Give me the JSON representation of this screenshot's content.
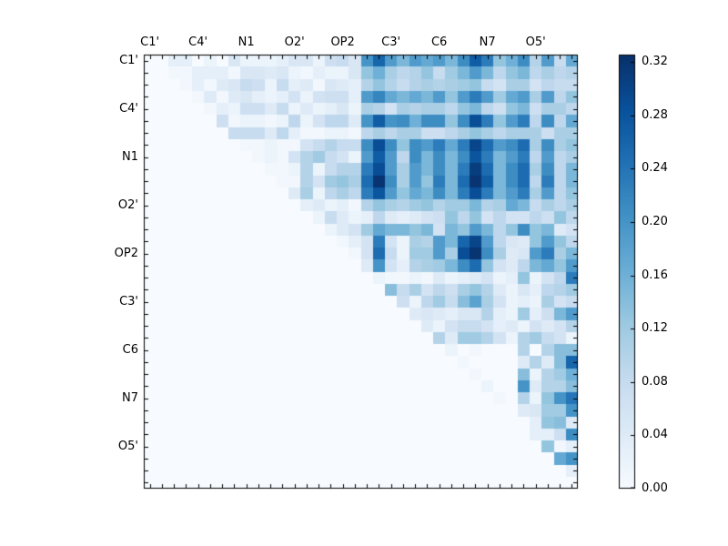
{
  "figure": {
    "background": "#ffffff"
  },
  "chart_data": {
    "type": "heatmap",
    "title": "",
    "grid_size": 36,
    "x_tick_labels": [
      "C1'",
      "C4'",
      "N1",
      "O2'",
      "OP2",
      "C3'",
      "C6",
      "N7",
      "O5'"
    ],
    "y_tick_labels": [
      "C1'",
      "C4'",
      "N1",
      "O2'",
      "OP2",
      "C3'",
      "C6",
      "N7",
      "O5'"
    ],
    "tick_label_stride": 4,
    "tick_label_offset": 0.5,
    "vmin": 0.0,
    "vmax": 0.3255,
    "colormap": "Blues",
    "colormap_stops": [
      "#f7fbff",
      "#deebf7",
      "#c6dbef",
      "#9ecae1",
      "#6baed6",
      "#4292c6",
      "#2171b5",
      "#08519c",
      "#08306b"
    ],
    "axis_color": "#000000",
    "colorbar": {
      "tick_labels": [
        "0.00",
        "0.04",
        "0.08",
        "0.12",
        "0.16",
        "0.20",
        "0.24",
        "0.28",
        "0.32"
      ],
      "tick_values": [
        0.0,
        0.04,
        0.08,
        0.12,
        0.16,
        0.2,
        0.24,
        0.28,
        0.32
      ]
    },
    "matrix": [
      [
        0,
        0,
        0.03,
        0.03,
        0,
        0.02,
        0,
        0.05,
        0.02,
        0.02,
        0.02,
        0.03,
        0.05,
        0.05,
        0.02,
        0.07,
        0.08,
        0.05,
        0.2,
        0.26,
        0.19,
        0.15,
        0.19,
        0.17,
        0.19,
        0.15,
        0.21,
        0.27,
        0.23,
        0.13,
        0.16,
        0.21,
        0.1,
        0.19,
        0.08,
        0.17
      ],
      [
        0,
        0,
        0.01,
        0.01,
        0.03,
        0.03,
        0.03,
        0.01,
        0.05,
        0.05,
        0.04,
        0.05,
        0.02,
        0.01,
        0.03,
        0.02,
        0.02,
        0.05,
        0.13,
        0.16,
        0.11,
        0.09,
        0.1,
        0.13,
        0.08,
        0.12,
        0.15,
        0.19,
        0.15,
        0.09,
        0.13,
        0.15,
        0.09,
        0.11,
        0.09,
        0.1
      ],
      [
        0,
        0,
        0,
        0.01,
        0.03,
        0.01,
        0.04,
        0.05,
        0.08,
        0.07,
        0.02,
        0.08,
        0.03,
        0.04,
        0.01,
        0.05,
        0.04,
        0.03,
        0.1,
        0.13,
        0.1,
        0.08,
        0.1,
        0.11,
        0.1,
        0.11,
        0.12,
        0.13,
        0.08,
        0.06,
        0.11,
        0.11,
        0.06,
        0.09,
        0.08,
        0.08
      ],
      [
        0,
        0,
        0,
        0,
        0.01,
        0.04,
        0.01,
        0.04,
        0.05,
        0.03,
        0.02,
        0.03,
        0.06,
        0.02,
        0.06,
        0.07,
        0.07,
        0.03,
        0.19,
        0.22,
        0.17,
        0.15,
        0.17,
        0.15,
        0.19,
        0.13,
        0.19,
        0.23,
        0.19,
        0.12,
        0.17,
        0.19,
        0.11,
        0.19,
        0.09,
        0.13
      ],
      [
        0,
        0,
        0,
        0,
        0,
        0.01,
        0.03,
        0.02,
        0.07,
        0.07,
        0.04,
        0.08,
        0.02,
        0.04,
        0.02,
        0.03,
        0.05,
        0.02,
        0.11,
        0.1,
        0.06,
        0.11,
        0.1,
        0.11,
        0.11,
        0.09,
        0.13,
        0.15,
        0.09,
        0.07,
        0.13,
        0.15,
        0.07,
        0.11,
        0.11,
        0.09
      ],
      [
        0,
        0,
        0,
        0,
        0,
        0,
        0.07,
        0.01,
        0.02,
        0.02,
        0.01,
        0.02,
        0.09,
        0.02,
        0.06,
        0.09,
        0.09,
        0.04,
        0.2,
        0.27,
        0.2,
        0.21,
        0.16,
        0.21,
        0.21,
        0.13,
        0.21,
        0.29,
        0.23,
        0.13,
        0.19,
        0.23,
        0.09,
        0.21,
        0.09,
        0.17
      ],
      [
        0,
        0,
        0,
        0,
        0,
        0,
        0,
        0.08,
        0.08,
        0.08,
        0.04,
        0.09,
        0.03,
        0.01,
        0.01,
        0.02,
        0.02,
        0.01,
        0.09,
        0.11,
        0.09,
        0.11,
        0.11,
        0.07,
        0.07,
        0.09,
        0.11,
        0.13,
        0.11,
        0.09,
        0.11,
        0.11,
        0.11,
        0.07,
        0.11,
        0.11
      ],
      [
        0,
        0,
        0,
        0,
        0,
        0,
        0,
        0,
        0.01,
        0.01,
        0.02,
        0.01,
        0.01,
        0.06,
        0.08,
        0.1,
        0.08,
        0.08,
        0.21,
        0.29,
        0.21,
        0.13,
        0.21,
        0.19,
        0.23,
        0.17,
        0.23,
        0.3,
        0.25,
        0.19,
        0.21,
        0.25,
        0.11,
        0.21,
        0.11,
        0.13
      ],
      [
        0,
        0,
        0,
        0,
        0,
        0,
        0,
        0,
        0,
        0.01,
        0.02,
        0.01,
        0.06,
        0.1,
        0.12,
        0.08,
        0.06,
        0.02,
        0.19,
        0.27,
        0.19,
        0.09,
        0.21,
        0.15,
        0.21,
        0.15,
        0.21,
        0.28,
        0.23,
        0.15,
        0.19,
        0.23,
        0.09,
        0.19,
        0.09,
        0.11
      ],
      [
        0,
        0,
        0,
        0,
        0,
        0,
        0,
        0,
        0,
        0,
        0.01,
        0.01,
        0.02,
        0.1,
        0.02,
        0.08,
        0.1,
        0.1,
        0.23,
        0.29,
        0.19,
        0.11,
        0.19,
        0.15,
        0.21,
        0.15,
        0.23,
        0.31,
        0.25,
        0.15,
        0.21,
        0.25,
        0.11,
        0.21,
        0.09,
        0.15
      ],
      [
        0,
        0,
        0,
        0,
        0,
        0,
        0,
        0,
        0,
        0,
        0,
        0.01,
        0.01,
        0.1,
        0.06,
        0.12,
        0.13,
        0.11,
        0.25,
        0.32,
        0.21,
        0.11,
        0.19,
        0.13,
        0.23,
        0.15,
        0.25,
        0.32,
        0.27,
        0.15,
        0.21,
        0.25,
        0.09,
        0.23,
        0.09,
        0.15
      ],
      [
        0,
        0,
        0,
        0,
        0,
        0,
        0,
        0,
        0,
        0,
        0,
        0,
        0.04,
        0.11,
        0.02,
        0.09,
        0.11,
        0.09,
        0.23,
        0.28,
        0.19,
        0.13,
        0.17,
        0.15,
        0.21,
        0.15,
        0.23,
        0.29,
        0.23,
        0.15,
        0.19,
        0.23,
        0.11,
        0.19,
        0.09,
        0.13
      ],
      [
        0,
        0,
        0,
        0,
        0,
        0,
        0,
        0,
        0,
        0,
        0,
        0,
        0,
        0.03,
        0.04,
        0.02,
        0.03,
        0.01,
        0.1,
        0.13,
        0.11,
        0.1,
        0.12,
        0.13,
        0.1,
        0.12,
        0.12,
        0.15,
        0.1,
        0.11,
        0.17,
        0.15,
        0.08,
        0.11,
        0.09,
        0.11
      ],
      [
        0,
        0,
        0,
        0,
        0,
        0,
        0,
        0,
        0,
        0,
        0,
        0,
        0,
        0,
        0.02,
        0.08,
        0.04,
        0.02,
        0.03,
        0.09,
        0.04,
        0.03,
        0.04,
        0.06,
        0.07,
        0.13,
        0.09,
        0.13,
        0.06,
        0.09,
        0.06,
        0.06,
        0.09,
        0.07,
        0.13,
        0.09
      ],
      [
        0,
        0,
        0,
        0,
        0,
        0,
        0,
        0,
        0,
        0,
        0,
        0,
        0,
        0,
        0,
        0.02,
        0.04,
        0.06,
        0.12,
        0.17,
        0.15,
        0.15,
        0.13,
        0.15,
        0.06,
        0.15,
        0.13,
        0.19,
        0.15,
        0.09,
        0.13,
        0.21,
        0.13,
        0.15,
        0.04,
        0.06
      ],
      [
        0,
        0,
        0,
        0,
        0,
        0,
        0,
        0,
        0,
        0,
        0,
        0,
        0,
        0,
        0,
        0,
        0.01,
        0.03,
        0.06,
        0.23,
        0.06,
        0.02,
        0.11,
        0.1,
        0.19,
        0.15,
        0.26,
        0.3,
        0.19,
        0.09,
        0.05,
        0.04,
        0.13,
        0.19,
        0.13,
        0.09
      ],
      [
        0,
        0,
        0,
        0,
        0,
        0,
        0,
        0,
        0,
        0,
        0,
        0,
        0,
        0,
        0,
        0,
        0,
        0.01,
        0.06,
        0.25,
        0.08,
        0.02,
        0.12,
        0.12,
        0.19,
        0.11,
        0.29,
        0.32,
        0.21,
        0.11,
        0.04,
        0.05,
        0.19,
        0.23,
        0.11,
        0.15
      ],
      [
        0,
        0,
        0,
        0,
        0,
        0,
        0,
        0,
        0,
        0,
        0,
        0,
        0,
        0,
        0,
        0,
        0,
        0,
        0.04,
        0.2,
        0.06,
        0.03,
        0.1,
        0.11,
        0.12,
        0.15,
        0.21,
        0.25,
        0.13,
        0.06,
        0.04,
        0.09,
        0.15,
        0.17,
        0.13,
        0.19
      ],
      [
        0,
        0,
        0,
        0,
        0,
        0,
        0,
        0,
        0,
        0,
        0,
        0,
        0,
        0,
        0,
        0,
        0,
        0,
        0,
        0.02,
        0.01,
        0.01,
        0.02,
        0.01,
        0.04,
        0.02,
        0.03,
        0.04,
        0.06,
        0.02,
        0.03,
        0.13,
        0.02,
        0.06,
        0.09,
        0.23
      ],
      [
        0,
        0,
        0,
        0,
        0,
        0,
        0,
        0,
        0,
        0,
        0,
        0,
        0,
        0,
        0,
        0,
        0,
        0,
        0,
        0,
        0.14,
        0.08,
        0.11,
        0.06,
        0.09,
        0.07,
        0.11,
        0.13,
        0.1,
        0.04,
        0.02,
        0.05,
        0.03,
        0.09,
        0.1,
        0.12
      ],
      [
        0,
        0,
        0,
        0,
        0,
        0,
        0,
        0,
        0,
        0,
        0,
        0,
        0,
        0,
        0,
        0,
        0,
        0,
        0,
        0,
        0,
        0.07,
        0.02,
        0.09,
        0.12,
        0.08,
        0.14,
        0.18,
        0.11,
        0.06,
        0.02,
        0.03,
        0.02,
        0.11,
        0.06,
        0.08
      ],
      [
        0,
        0,
        0,
        0,
        0,
        0,
        0,
        0,
        0,
        0,
        0,
        0,
        0,
        0,
        0,
        0,
        0,
        0,
        0,
        0,
        0,
        0,
        0.04,
        0.05,
        0.04,
        0.03,
        0.05,
        0.05,
        0.1,
        0.03,
        0.02,
        0.12,
        0.03,
        0.07,
        0.15,
        0.19
      ],
      [
        0,
        0,
        0,
        0,
        0,
        0,
        0,
        0,
        0,
        0,
        0,
        0,
        0,
        0,
        0,
        0,
        0,
        0,
        0,
        0,
        0,
        0,
        0,
        0.04,
        0.02,
        0.06,
        0.08,
        0.08,
        0.06,
        0.03,
        0.04,
        0.02,
        0.06,
        0.04,
        0.06,
        0.1
      ],
      [
        0,
        0,
        0,
        0,
        0,
        0,
        0,
        0,
        0,
        0,
        0,
        0,
        0,
        0,
        0,
        0,
        0,
        0,
        0,
        0,
        0,
        0,
        0,
        0,
        0.1,
        0.04,
        0.12,
        0.12,
        0.1,
        0.06,
        0.02,
        0.1,
        0.12,
        0.08,
        0.06,
        0.02
      ],
      [
        0,
        0,
        0,
        0,
        0,
        0,
        0,
        0,
        0,
        0,
        0,
        0,
        0,
        0,
        0,
        0,
        0,
        0,
        0,
        0,
        0,
        0,
        0,
        0,
        0,
        0.02,
        0,
        0.01,
        0,
        0,
        0,
        0.1,
        0,
        0.1,
        0.14,
        0.14
      ],
      [
        0,
        0,
        0,
        0,
        0,
        0,
        0,
        0,
        0,
        0,
        0,
        0,
        0,
        0,
        0,
        0,
        0,
        0,
        0,
        0,
        0,
        0,
        0,
        0,
        0,
        0,
        0.01,
        0,
        0,
        0,
        0,
        0.04,
        0.1,
        0.04,
        0.14,
        0.26
      ],
      [
        0,
        0,
        0,
        0,
        0,
        0,
        0,
        0,
        0,
        0,
        0,
        0,
        0,
        0,
        0,
        0,
        0,
        0,
        0,
        0,
        0,
        0,
        0,
        0,
        0,
        0,
        0,
        0.01,
        0,
        0,
        0,
        0.14,
        0.02,
        0.1,
        0.12,
        0.16
      ],
      [
        0,
        0,
        0,
        0,
        0,
        0,
        0,
        0,
        0,
        0,
        0,
        0,
        0,
        0,
        0,
        0,
        0,
        0,
        0,
        0,
        0,
        0,
        0,
        0,
        0,
        0,
        0,
        0,
        0.02,
        0,
        0,
        0.2,
        0.04,
        0.1,
        0.1,
        0.14
      ],
      [
        0,
        0,
        0,
        0,
        0,
        0,
        0,
        0,
        0,
        0,
        0,
        0,
        0,
        0,
        0,
        0,
        0,
        0,
        0,
        0,
        0,
        0,
        0,
        0,
        0,
        0,
        0,
        0,
        0,
        0.01,
        0,
        0.1,
        0.02,
        0.13,
        0.2,
        0.24
      ],
      [
        0,
        0,
        0,
        0,
        0,
        0,
        0,
        0,
        0,
        0,
        0,
        0,
        0,
        0,
        0,
        0,
        0,
        0,
        0,
        0,
        0,
        0,
        0,
        0,
        0,
        0,
        0,
        0,
        0,
        0,
        0,
        0.04,
        0.05,
        0.12,
        0.12,
        0.2
      ],
      [
        0,
        0,
        0,
        0,
        0,
        0,
        0,
        0,
        0,
        0,
        0,
        0,
        0,
        0,
        0,
        0,
        0,
        0,
        0,
        0,
        0,
        0,
        0,
        0,
        0,
        0,
        0,
        0,
        0,
        0,
        0,
        0,
        0.03,
        0.13,
        0.14,
        0.04
      ],
      [
        0,
        0,
        0,
        0,
        0,
        0,
        0,
        0,
        0,
        0,
        0,
        0,
        0,
        0,
        0,
        0,
        0,
        0,
        0,
        0,
        0,
        0,
        0,
        0,
        0,
        0,
        0,
        0,
        0,
        0,
        0,
        0,
        0.03,
        0.03,
        0.07,
        0.21
      ],
      [
        0,
        0,
        0,
        0,
        0,
        0,
        0,
        0,
        0,
        0,
        0,
        0,
        0,
        0,
        0,
        0,
        0,
        0,
        0,
        0,
        0,
        0,
        0,
        0,
        0,
        0,
        0,
        0,
        0,
        0,
        0,
        0,
        0,
        0.13,
        0.01,
        0.03
      ],
      [
        0,
        0,
        0,
        0,
        0,
        0,
        0,
        0,
        0,
        0,
        0,
        0,
        0,
        0,
        0,
        0,
        0,
        0,
        0,
        0,
        0,
        0,
        0,
        0,
        0,
        0,
        0,
        0,
        0,
        0,
        0,
        0,
        0,
        0,
        0.17,
        0.2
      ],
      [
        0,
        0,
        0,
        0,
        0,
        0,
        0,
        0,
        0,
        0,
        0,
        0,
        0,
        0,
        0,
        0,
        0,
        0,
        0,
        0,
        0,
        0,
        0,
        0,
        0,
        0,
        0,
        0,
        0,
        0,
        0,
        0,
        0,
        0,
        0,
        0.03
      ],
      [
        0,
        0,
        0,
        0,
        0,
        0,
        0,
        0,
        0,
        0,
        0,
        0,
        0,
        0,
        0,
        0,
        0,
        0,
        0,
        0,
        0,
        0,
        0,
        0,
        0,
        0,
        0,
        0,
        0,
        0,
        0,
        0,
        0,
        0,
        0,
        0
      ]
    ]
  }
}
